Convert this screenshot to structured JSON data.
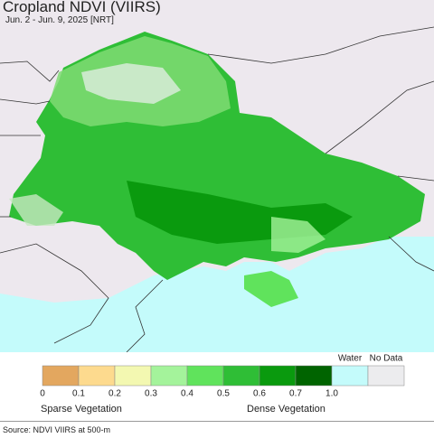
{
  "header": {
    "title": "Cropland NDVI (VIIRS)",
    "subtitle": "Jun. 2 - Jun. 9, 2025 [NRT]"
  },
  "legend": {
    "bins": [
      {
        "color": "#e3a75f"
      },
      {
        "color": "#fdda8e"
      },
      {
        "color": "#f3f8b1"
      },
      {
        "color": "#a4f39b"
      },
      {
        "color": "#60e35c"
      },
      {
        "color": "#2fbe36"
      },
      {
        "color": "#0a9a0e"
      },
      {
        "color": "#006400"
      },
      {
        "color": "#c4fbfb",
        "label": "Water"
      },
      {
        "color": "#ececee",
        "label": "No Data"
      }
    ],
    "ticks": [
      "0",
      "0.1",
      "0.2",
      "0.3",
      "0.4",
      "0.5",
      "0.6",
      "0.7",
      "1.0"
    ],
    "low_label": "Sparse Vegetation",
    "high_label": "Dense Vegetation"
  },
  "footer": {
    "source": "Source: NDVI VIIRS at 500-m"
  }
}
